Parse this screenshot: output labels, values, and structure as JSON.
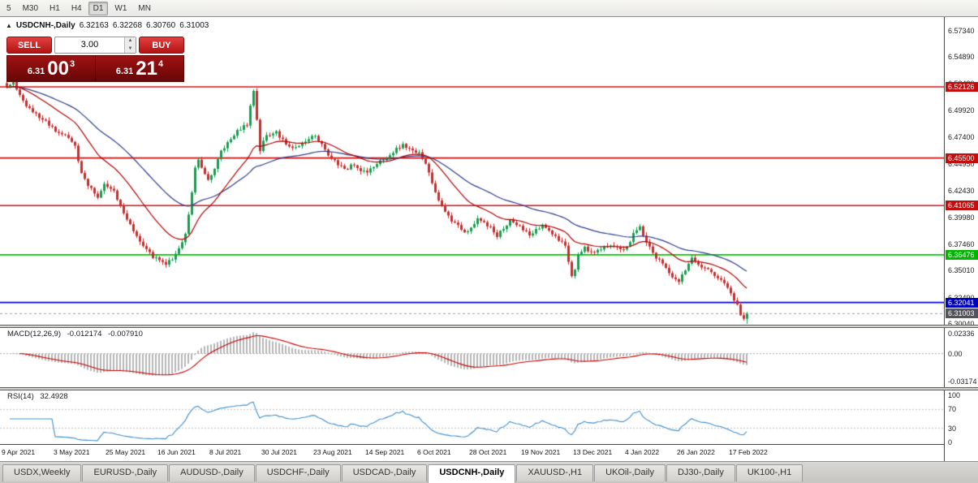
{
  "toolbar": {
    "timeframes": [
      "5",
      "M30",
      "H1",
      "H4",
      "D1",
      "W1",
      "MN"
    ],
    "active": "D1"
  },
  "chart": {
    "collapse_icon": "▲",
    "symbol": "USDCNH-,Daily",
    "open": "6.32163",
    "high": "6.32268",
    "low": "6.30760",
    "close": "6.31003"
  },
  "trade_panel": {
    "sell_label": "SELL",
    "buy_label": "BUY",
    "volume": "3.00",
    "bid": {
      "prefix": "6.31",
      "big": "00",
      "sup": "3"
    },
    "ask": {
      "prefix": "6.31",
      "big": "21",
      "sup": "4"
    }
  },
  "macd_panel": {
    "name": "MACD(12,26,9)",
    "value": "-0.012174",
    "signal_value": "-0.007910",
    "ticks": [
      {
        "label": "0.02336",
        "value": 0.02336
      },
      {
        "label": "0.00",
        "value": 0
      },
      {
        "label": "-0.03174",
        "value": -0.03174
      }
    ]
  },
  "rsi_panel": {
    "name": "RSI(14)",
    "value": "32.4928",
    "ticks": [
      {
        "label": "100",
        "value": 100
      },
      {
        "label": "70",
        "value": 70
      },
      {
        "label": "30",
        "value": 30
      },
      {
        "label": "0",
        "value": 0
      }
    ]
  },
  "price_axis": {
    "ticks": [
      {
        "label": "6.57340",
        "price": 6.5734
      },
      {
        "label": "6.54890",
        "price": 6.5489
      },
      {
        "label": "6.52430",
        "price": 6.5243
      },
      {
        "label": "6.49920",
        "price": 6.4992
      },
      {
        "label": "6.47400",
        "price": 6.474
      },
      {
        "label": "6.44950",
        "price": 6.4495
      },
      {
        "label": "6.42430",
        "price": 6.4243
      },
      {
        "label": "6.39980",
        "price": 6.3998
      },
      {
        "label": "6.37460",
        "price": 6.3746
      },
      {
        "label": "6.35010",
        "price": 6.3501
      },
      {
        "label": "6.32490",
        "price": 6.3249
      },
      {
        "label": "6.30040",
        "price": 6.3004
      }
    ]
  },
  "tabs": {
    "items": [
      "USDX,Weekly",
      "EURUSD-,Daily",
      "AUDUSD-,Daily",
      "USDCHF-,Daily",
      "USDCAD-,Daily",
      "USDCNH-,Daily",
      "XAUUSD-,H1",
      "UKOil-,Daily",
      "DJ30-,Daily",
      "UK100-,H1"
    ],
    "active": "USDCNH-,Daily"
  },
  "chart_data": {
    "type": "candlestick",
    "title": "USDCNH-,Daily",
    "ohlc_display": {
      "open": 6.32163,
      "high": 6.32268,
      "low": 6.3076,
      "close": 6.31003
    },
    "ylim": [
      6.2997,
      6.5855
    ],
    "bar_count": 229,
    "noise": 0.0016,
    "close_waypoints": [
      [
        0,
        6.522
      ],
      [
        2,
        6.527
      ],
      [
        5,
        6.507
      ],
      [
        8,
        6.497
      ],
      [
        12,
        6.489
      ],
      [
        16,
        6.478
      ],
      [
        19,
        6.474
      ],
      [
        21,
        6.466
      ],
      [
        23,
        6.441
      ],
      [
        25,
        6.429
      ],
      [
        28,
        6.419
      ],
      [
        30,
        6.43
      ],
      [
        33,
        6.424
      ],
      [
        36,
        6.403
      ],
      [
        38,
        6.393
      ],
      [
        40,
        6.381
      ],
      [
        43,
        6.369
      ],
      [
        45,
        6.363
      ],
      [
        47,
        6.359
      ],
      [
        49,
        6.357
      ],
      [
        51,
        6.36
      ],
      [
        53,
        6.371
      ],
      [
        55,
        6.385
      ],
      [
        56,
        6.401
      ],
      [
        57,
        6.423
      ],
      [
        58,
        6.446
      ],
      [
        59,
        6.452
      ],
      [
        60,
        6.447
      ],
      [
        62,
        6.434
      ],
      [
        64,
        6.446
      ],
      [
        66,
        6.461
      ],
      [
        68,
        6.47
      ],
      [
        70,
        6.477
      ],
      [
        72,
        6.482
      ],
      [
        74,
        6.486
      ],
      [
        76,
        6.519
      ],
      [
        78,
        6.463
      ],
      [
        80,
        6.477
      ],
      [
        83,
        6.479
      ],
      [
        86,
        6.467
      ],
      [
        89,
        6.464
      ],
      [
        92,
        6.471
      ],
      [
        95,
        6.477
      ],
      [
        98,
        6.462
      ],
      [
        101,
        6.452
      ],
      [
        104,
        6.444
      ],
      [
        107,
        6.449
      ],
      [
        109,
        6.443
      ],
      [
        111,
        6.441
      ],
      [
        113,
        6.447
      ],
      [
        116,
        6.454
      ],
      [
        119,
        6.461
      ],
      [
        122,
        6.467
      ],
      [
        125,
        6.463
      ],
      [
        127,
        6.459
      ],
      [
        129,
        6.449
      ],
      [
        131,
        6.432
      ],
      [
        133,
        6.414
      ],
      [
        135,
        6.405
      ],
      [
        137,
        6.397
      ],
      [
        139,
        6.391
      ],
      [
        141,
        6.387
      ],
      [
        143,
        6.389
      ],
      [
        145,
        6.398
      ],
      [
        147,
        6.394
      ],
      [
        149,
        6.391
      ],
      [
        151,
        6.383
      ],
      [
        153,
        6.389
      ],
      [
        155,
        6.396
      ],
      [
        157,
        6.392
      ],
      [
        159,
        6.389
      ],
      [
        161,
        6.384
      ],
      [
        163,
        6.388
      ],
      [
        165,
        6.393
      ],
      [
        167,
        6.387
      ],
      [
        169,
        6.381
      ],
      [
        171,
        6.377
      ],
      [
        172,
        6.373
      ],
      [
        173,
        6.357
      ],
      [
        174,
        6.346
      ],
      [
        175,
        6.352
      ],
      [
        176,
        6.365
      ],
      [
        178,
        6.371
      ],
      [
        181,
        6.367
      ],
      [
        184,
        6.372
      ],
      [
        187,
        6.374
      ],
      [
        189,
        6.369
      ],
      [
        191,
        6.371
      ],
      [
        193,
        6.384
      ],
      [
        195,
        6.391
      ],
      [
        197,
        6.377
      ],
      [
        199,
        6.366
      ],
      [
        201,
        6.359
      ],
      [
        203,
        6.352
      ],
      [
        205,
        6.345
      ],
      [
        207,
        6.34
      ],
      [
        209,
        6.351
      ],
      [
        211,
        6.361
      ],
      [
        213,
        6.357
      ],
      [
        215,
        6.352
      ],
      [
        217,
        6.348
      ],
      [
        219,
        6.344
      ],
      [
        221,
        6.337
      ],
      [
        223,
        6.33
      ],
      [
        224,
        6.322
      ],
      [
        225,
        6.317
      ],
      [
        226,
        6.31
      ],
      [
        227,
        6.306
      ],
      [
        228,
        6.31003
      ]
    ],
    "levels": [
      {
        "price": 6.52126,
        "label": "6.52126",
        "line_color": "#cf1212",
        "badge_color": "#c40d0d",
        "width": 1.6
      },
      {
        "price": 6.455,
        "label": "6.45500",
        "line_color": "#cf1212",
        "badge_color": "#c40d0d",
        "width": 1.6
      },
      {
        "price": 6.41065,
        "label": "6.41065",
        "line_color": "#cf1212",
        "badge_color": "#c40d0d",
        "width": 1.6
      },
      {
        "price": 6.36476,
        "label": "6.36476",
        "line_color": "#00c800",
        "badge_color": "#00b400",
        "width": 1.8
      },
      {
        "price": 6.32041,
        "label": "6.32041",
        "line_color": "#0000d2",
        "badge_color": "#0000c0",
        "width": 1.8
      }
    ],
    "current_price": {
      "price": 6.31003,
      "label": "6.31003",
      "line_color": "#9b9ba2",
      "badge_color": "#52525c"
    },
    "moving_averages": [
      {
        "period": 20,
        "color": "#b30000"
      },
      {
        "period": 45,
        "color": "#2f3d8a"
      }
    ],
    "indicators": {
      "macd": {
        "fast": 12,
        "slow": 26,
        "signal": 9,
        "value": -0.012174,
        "signal_value": -0.00791,
        "range": [
          -0.0395,
          0.0295
        ],
        "histogram_color": "#b5b5b5",
        "signal_color": "#cc0000"
      },
      "rsi": {
        "period": 14,
        "value": 32.4928,
        "color": "#3e8ed0",
        "levels": [
          70,
          30
        ],
        "range": [
          0,
          100
        ]
      }
    },
    "x_labels": [
      "9 Apr 2021",
      "3 May 2021",
      "25 May 2021",
      "16 Jun 2021",
      "8 Jul 2021",
      "30 Jul 2021",
      "23 Aug 2021",
      "14 Sep 2021",
      "6 Oct 2021",
      "28 Oct 2021",
      "19 Nov 2021",
      "13 Dec 2021",
      "4 Jan 2022",
      "26 Jan 2022",
      "17 Feb 2022"
    ],
    "x_label_bar_step": 16,
    "colors": {
      "up": "#10a34e",
      "down": "#d32a2a",
      "background": "#ffffff"
    }
  }
}
